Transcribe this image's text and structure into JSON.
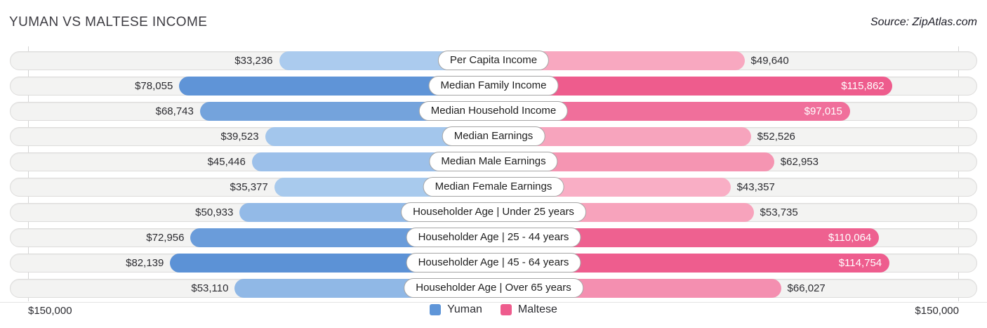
{
  "title": "YUMAN VS MALTESE INCOME",
  "source": "Source: ZipAtlas.com",
  "axis": {
    "max": 150000,
    "left_label": "$150,000",
    "right_label": "$150,000"
  },
  "legend": [
    {
      "label": "Yuman",
      "color": "#5e95d8"
    },
    {
      "label": "Maltese",
      "color": "#ee5c8d"
    }
  ],
  "chart_data": {
    "type": "bar",
    "orientation": "diverging-horizontal",
    "title": "YUMAN VS MALTESE INCOME",
    "axis_max": 150000,
    "categories": [
      "Per Capita Income",
      "Median Family Income",
      "Median Household Income",
      "Median Earnings",
      "Median Male Earnings",
      "Median Female Earnings",
      "Householder Age | Under 25 years",
      "Householder Age | 25 - 44 years",
      "Householder Age | 45 - 64 years",
      "Householder Age | Over 65 years"
    ],
    "series": [
      {
        "name": "Yuman",
        "values": [
          33236,
          78055,
          68743,
          39523,
          45446,
          35377,
          50933,
          72956,
          82139,
          53110
        ]
      },
      {
        "name": "Maltese",
        "values": [
          49640,
          115862,
          97015,
          52526,
          62953,
          43357,
          53735,
          110064,
          114754,
          66027
        ]
      }
    ],
    "rows": [
      {
        "category": "Per Capita Income",
        "yuman_value": 33236,
        "yuman_display": "$33,236",
        "yuman_color": "#abcbee",
        "maltese_value": 49640,
        "maltese_display": "$49,640",
        "maltese_color": "#f8a8c0",
        "maltese_inside": false
      },
      {
        "category": "Median Family Income",
        "yuman_value": 78055,
        "yuman_display": "$78,055",
        "yuman_color": "#5f94d7",
        "maltese_value": 115862,
        "maltese_display": "$115,862",
        "maltese_color": "#ee5c8d",
        "maltese_inside": true
      },
      {
        "category": "Median Household Income",
        "yuman_value": 68743,
        "yuman_display": "$68,743",
        "yuman_color": "#74a3dc",
        "maltese_value": 97015,
        "maltese_display": "$97,015",
        "maltese_color": "#f06f9b",
        "maltese_inside": true
      },
      {
        "category": "Median Earnings",
        "yuman_value": 39523,
        "yuman_display": "$39,523",
        "yuman_color": "#a3c6ec",
        "maltese_value": 52526,
        "maltese_display": "$52,526",
        "maltese_color": "#f7a4bd",
        "maltese_inside": false
      },
      {
        "category": "Median Male Earnings",
        "yuman_value": 45446,
        "yuman_display": "$45,446",
        "yuman_color": "#9cc0ea",
        "maltese_value": 62953,
        "maltese_display": "$62,953",
        "maltese_color": "#f595b2",
        "maltese_inside": false
      },
      {
        "category": "Median Female Earnings",
        "yuman_value": 35377,
        "yuman_display": "$35,377",
        "yuman_color": "#a8caed",
        "maltese_value": 43357,
        "maltese_display": "$43,357",
        "maltese_color": "#f9aec5",
        "maltese_inside": false
      },
      {
        "category": "Householder Age | Under 25 years",
        "yuman_value": 50933,
        "yuman_display": "$50,933",
        "yuman_color": "#93bae7",
        "maltese_value": 53735,
        "maltese_display": "$53,735",
        "maltese_color": "#f7a3bc",
        "maltese_inside": false
      },
      {
        "category": "Householder Age | 25 - 44 years",
        "yuman_value": 72956,
        "yuman_display": "$72,956",
        "yuman_color": "#6a9cda",
        "maltese_value": 110064,
        "maltese_display": "$110,064",
        "maltese_color": "#ee6190",
        "maltese_inside": true
      },
      {
        "category": "Householder Age | 45 - 64 years",
        "yuman_value": 82139,
        "yuman_display": "$82,139",
        "yuman_color": "#5c92d6",
        "maltese_value": 114754,
        "maltese_display": "$114,754",
        "maltese_color": "#ee5d8e",
        "maltese_inside": true
      },
      {
        "category": "Householder Age | Over 65 years",
        "yuman_value": 53110,
        "yuman_display": "$53,110",
        "yuman_color": "#90b8e6",
        "maltese_value": 66027,
        "maltese_display": "$66,027",
        "maltese_color": "#f48fb0",
        "maltese_inside": false
      }
    ]
  }
}
